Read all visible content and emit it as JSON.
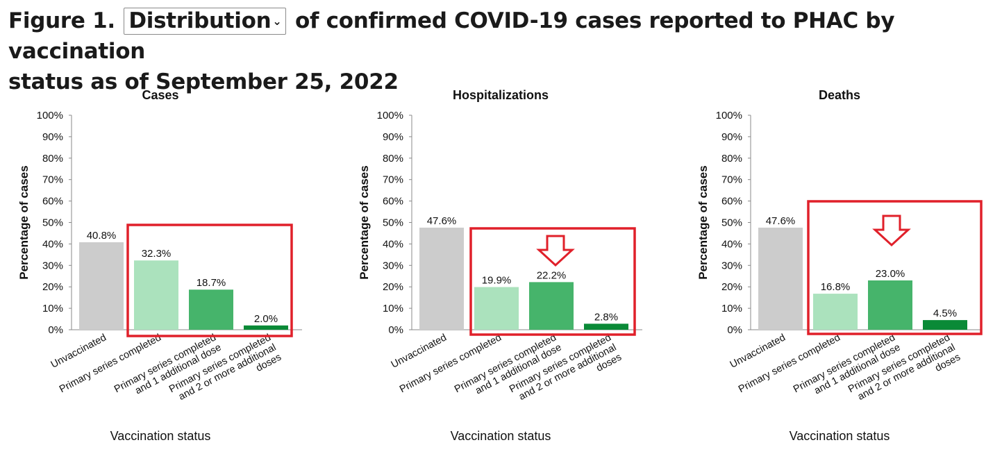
{
  "heading": {
    "prefix": "Figure 1.",
    "dropdown_value": "Distribution",
    "dropdown_icon": "chevron-down-icon",
    "line1_rest": "of confirmed COVID-19 cases reported to PHAC by vaccination",
    "line2": "status as of September 25, 2022"
  },
  "colors": {
    "unvaccinated": "#cccccc",
    "primary_series": "#abe2bd",
    "one_additional": "#46b46b",
    "two_or_more": "#0a8a37",
    "highlight_box": "#e0202a"
  },
  "chart_data": [
    {
      "type": "bar",
      "title": "Cases",
      "xlabel": "Vaccination status",
      "ylabel": "Percentage of cases",
      "ylim": [
        0,
        100
      ],
      "yticks": [
        "0%",
        "10%",
        "20%",
        "30%",
        "40%",
        "50%",
        "60%",
        "70%",
        "80%",
        "90%",
        "100%"
      ],
      "categories": [
        "Unvaccinated",
        "Primary series completed",
        "Primary series completed and 1 additional dose",
        "Primary series completed and 2 or more additional doses"
      ],
      "values": [
        40.8,
        32.3,
        18.7,
        2.0
      ],
      "data_labels": [
        "40.8%",
        "32.3%",
        "18.7%",
        "2.0%"
      ],
      "annotations": {
        "highlight_box": "bars 2-4",
        "arrow": "none"
      }
    },
    {
      "type": "bar",
      "title": "Hospitalizations",
      "xlabel": "Vaccination status",
      "ylabel": "Percentage of cases",
      "ylim": [
        0,
        100
      ],
      "yticks": [
        "0%",
        "10%",
        "20%",
        "30%",
        "40%",
        "50%",
        "60%",
        "70%",
        "80%",
        "90%",
        "100%"
      ],
      "categories": [
        "Unvaccinated",
        "Primary series completed",
        "Primary series completed and 1 additional dose",
        "Primary series completed and 2 or more additional doses"
      ],
      "values": [
        47.6,
        19.9,
        22.2,
        2.8
      ],
      "data_labels": [
        "47.6%",
        "19.9%",
        "22.2%",
        "2.8%"
      ],
      "annotations": {
        "highlight_box": "bars 2-4",
        "arrow": "down arrow over bar 3"
      }
    },
    {
      "type": "bar",
      "title": "Deaths",
      "xlabel": "Vaccination status",
      "ylabel": "Percentage of cases",
      "ylim": [
        0,
        100
      ],
      "yticks": [
        "0%",
        "10%",
        "20%",
        "30%",
        "40%",
        "50%",
        "60%",
        "70%",
        "80%",
        "90%",
        "100%"
      ],
      "categories": [
        "Unvaccinated",
        "Primary series completed",
        "Primary series completed and 1 additional dose",
        "Primary series completed and 2 or more additional doses"
      ],
      "values": [
        47.6,
        16.8,
        23.0,
        4.5
      ],
      "data_labels": [
        "47.6%",
        "16.8%",
        "23.0%",
        "4.5%"
      ],
      "annotations": {
        "highlight_box": "bars 2-4",
        "arrow": "down arrow over bar 3"
      }
    }
  ]
}
